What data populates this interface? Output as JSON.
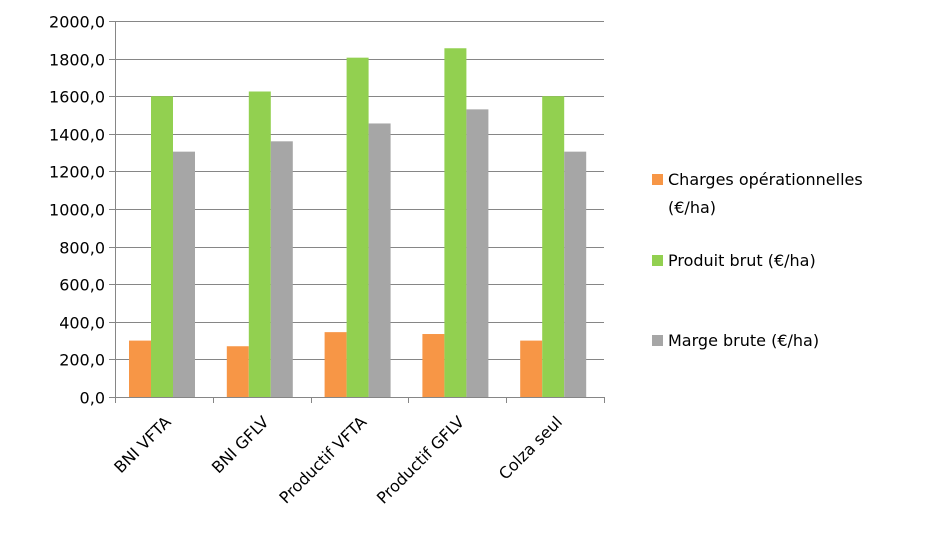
{
  "chart_data": {
    "type": "bar",
    "title": "",
    "xlabel": "",
    "ylabel": "",
    "categories": [
      "BNI VFTA",
      "BNI GFLV",
      "Productif VFTA",
      "Productif GFLV",
      "Colza seul"
    ],
    "series": [
      {
        "name": "Charges opérationnelles (€/ha)",
        "color": "#F79646",
        "values": [
          300,
          270,
          345,
          335,
          300
        ]
      },
      {
        "name": "Produit brut (€/ha)",
        "color": "#92D050",
        "values": [
          1600,
          1625,
          1805,
          1855,
          1600
        ]
      },
      {
        "name": "Marge brute (€/ha)",
        "color": "#A6A6A6",
        "values": [
          1305,
          1360,
          1455,
          1530,
          1305
        ]
      }
    ],
    "ylim": [
      0,
      2000
    ],
    "yticks": [
      "0,0",
      "200,0",
      "400,0",
      "600,0",
      "800,0",
      "1000,0",
      "1200,0",
      "1400,0",
      "1600,0",
      "1800,0",
      "2000,0"
    ],
    "ytick_values": [
      0,
      200,
      400,
      600,
      800,
      1000,
      1200,
      1400,
      1600,
      1800,
      2000
    ],
    "grid": true,
    "legend_position": "right",
    "legend_lines": [
      [
        "Charges opérationnelles",
        "(€/ha)"
      ],
      [
        "Produit brut (€/ha)"
      ],
      [
        "Marge brute (€/ha)"
      ]
    ]
  }
}
